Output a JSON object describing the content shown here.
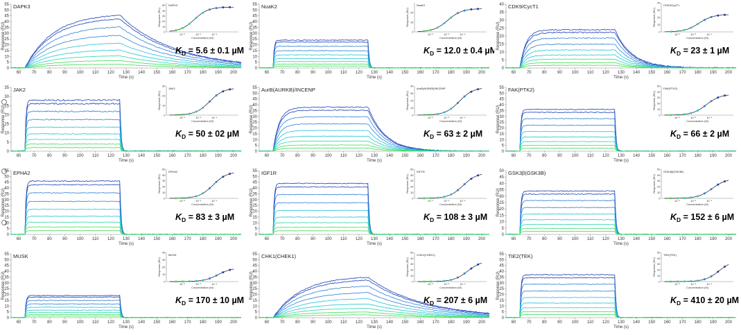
{
  "figure": {
    "panel_axis_labels": {
      "xlabel": "Time (s)",
      "ylabel": "Response (RU)",
      "inset_xlabel": "Concentration (M)",
      "inset_ylabel": "Response (RU)"
    },
    "kd_prefix": "K",
    "kd_sub": "D",
    "colors": {
      "dark_blue": "#1a3fb5",
      "mid_blue": "#2f7fd6",
      "cyan": "#22c3d6",
      "teal": "#2ad6a8",
      "green": "#3bdc55",
      "inset_line": "#111111"
    }
  },
  "chart_data": [
    {
      "type": "line",
      "title": "DAPK3",
      "kd_text": " = 5.6 ± 0.1 µM",
      "kinetics": "slow",
      "plateau": 47,
      "ylim": [
        0,
        55
      ],
      "yticks": [
        0,
        5,
        10,
        15,
        20,
        25,
        30,
        35,
        40,
        45,
        50,
        55
      ],
      "xlim": [
        55,
        205
      ],
      "xticks": [
        60,
        70,
        80,
        90,
        100,
        110,
        120,
        130,
        140,
        150,
        160,
        170,
        180,
        190,
        200
      ],
      "inset": {
        "title": "DAPK3",
        "ylim": [
          0,
          55
        ],
        "yticks": [
          0,
          10,
          20,
          30,
          40,
          50
        ],
        "xticklabels": [
          "10⁻⁶",
          "10⁻⁵",
          "10⁻⁴"
        ],
        "kd_log": -5.25
      }
    },
    {
      "type": "line",
      "title": "NuaK2",
      "kd_text": " = 12.0 ± 0.4 µM",
      "kinetics": "fast",
      "plateau": 24,
      "ylim": [
        0,
        55
      ],
      "yticks": [
        0,
        5,
        10,
        15,
        20,
        25,
        30,
        35,
        40,
        45,
        50,
        55
      ],
      "xlim": [
        55,
        205
      ],
      "xticks": [
        60,
        70,
        80,
        90,
        100,
        110,
        120,
        130,
        140,
        150,
        160,
        170,
        180,
        190,
        200
      ],
      "inset": {
        "title": "NuaK2",
        "ylim": [
          0,
          30
        ],
        "yticks": [
          0,
          10,
          20
        ],
        "xticklabels": [
          "10⁻⁶",
          "10⁻⁵",
          "10⁻⁴"
        ],
        "kd_log": -4.92
      }
    },
    {
      "type": "line",
      "title": "CDK9/CycT1",
      "kd_text": " = 23 ± 1 µM",
      "kinetics": "medium",
      "plateau": 24,
      "ylim": [
        0,
        40
      ],
      "yticks": [
        0,
        5,
        10,
        15,
        20,
        25,
        30,
        35,
        40
      ],
      "xlim": [
        55,
        205
      ],
      "xticks": [
        60,
        70,
        80,
        90,
        100,
        110,
        120,
        130,
        140,
        150,
        160,
        170,
        180,
        190,
        200
      ],
      "inset": {
        "title": "CDK9/CycT1",
        "ylim": [
          0,
          40
        ],
        "yticks": [
          0,
          10,
          20,
          30,
          40
        ],
        "xticklabels": [
          "10⁻⁶",
          "10⁻⁵",
          "10⁻⁴"
        ],
        "kd_log": -4.64
      }
    },
    {
      "type": "line",
      "title": "JAK2",
      "kd_text": " = 50 ± 02 µM",
      "kinetics": "fast",
      "plateau": 28,
      "ylim": [
        0,
        35
      ],
      "yticks": [
        0,
        5,
        10,
        15,
        20,
        25,
        30,
        35
      ],
      "xlim": [
        55,
        205
      ],
      "xticks": [
        60,
        70,
        80,
        90,
        100,
        110,
        120,
        130,
        140,
        150,
        160,
        170,
        180,
        190,
        200
      ],
      "inset": {
        "title": "JAK2",
        "ylim": [
          0,
          30
        ],
        "yticks": [
          0,
          10,
          20,
          30
        ],
        "xticklabels": [
          "10⁻⁶",
          "10⁻⁵",
          "10⁻⁴"
        ],
        "kd_log": -4.3
      }
    },
    {
      "type": "line",
      "title": "AurB(AURKB)/INCENP",
      "kd_text": " = 63 ± 2 µM",
      "kinetics": "medium",
      "plateau": 38,
      "ylim": [
        0,
        55
      ],
      "yticks": [
        0,
        5,
        10,
        15,
        20,
        25,
        30,
        35,
        40,
        45,
        50,
        55
      ],
      "xlim": [
        55,
        205
      ],
      "xticks": [
        60,
        70,
        80,
        90,
        100,
        110,
        120,
        130,
        140,
        150,
        160,
        170,
        180,
        190,
        200
      ],
      "inset": {
        "title": "AurB(AURKB)/INCENP",
        "ylim": [
          0,
          40
        ],
        "yticks": [
          0,
          10,
          20,
          30,
          40
        ],
        "xticklabels": [
          "10⁻⁶",
          "10⁻⁵",
          "10⁻⁴"
        ],
        "kd_log": -4.2
      }
    },
    {
      "type": "line",
      "title": "FAK(PTK2)",
      "kd_text": " = 66 ± 2 µM",
      "kinetics": "fast",
      "plateau": 36,
      "ylim": [
        0,
        55
      ],
      "yticks": [
        0,
        5,
        10,
        15,
        20,
        25,
        30,
        35,
        40,
        45,
        50,
        55
      ],
      "xlim": [
        55,
        205
      ],
      "xticks": [
        60,
        70,
        80,
        90,
        100,
        110,
        120,
        130,
        140,
        150,
        160,
        170,
        180,
        190,
        200
      ],
      "inset": {
        "title": "FAK(PTK2)",
        "ylim": [
          0,
          50
        ],
        "yticks": [
          0,
          10,
          20,
          30,
          40,
          50
        ],
        "xticklabels": [
          "10⁻⁶",
          "10⁻⁵",
          "10⁻⁴"
        ],
        "kd_log": -4.18
      }
    },
    {
      "type": "line",
      "title": "EPHA2",
      "kd_text": " = 83 ± 3 µM",
      "kinetics": "fast",
      "plateau": 46,
      "ylim": [
        0,
        55
      ],
      "yticks": [
        0,
        5,
        10,
        15,
        20,
        25,
        30,
        35,
        40,
        45,
        50,
        55
      ],
      "xlim": [
        55,
        205
      ],
      "xticks": [
        60,
        70,
        80,
        90,
        100,
        110,
        120,
        130,
        140,
        150,
        160,
        170,
        180,
        190,
        200
      ],
      "inset": {
        "title": "EPHA2",
        "ylim": [
          0,
          50
        ],
        "yticks": [
          0,
          10,
          20,
          30,
          40,
          50
        ],
        "xticklabels": [
          "10⁻⁶",
          "10⁻⁵",
          "10⁻⁴"
        ],
        "kd_log": -4.08
      }
    },
    {
      "type": "line",
      "title": "IGF1R",
      "kd_text": " = 108 ± 3 µM",
      "kinetics": "fast",
      "plateau": 44,
      "ylim": [
        0,
        55
      ],
      "yticks": [
        0,
        5,
        10,
        15,
        20,
        25,
        30,
        35,
        40,
        45,
        50,
        55
      ],
      "xlim": [
        55,
        205
      ],
      "xticks": [
        60,
        70,
        80,
        90,
        100,
        110,
        120,
        130,
        140,
        150,
        160,
        170,
        180,
        190,
        200
      ],
      "inset": {
        "title": "IGF1R",
        "ylim": [
          0,
          50
        ],
        "yticks": [
          0,
          10,
          20,
          30,
          40,
          50
        ],
        "xticklabels": [
          "10⁻⁶",
          "10⁻⁵",
          "10⁻⁴"
        ],
        "kd_log": -3.97
      }
    },
    {
      "type": "line",
      "title": "GSK3β(GSK3B)",
      "kd_text": " = 152 ± 6 µM",
      "kinetics": "fast",
      "plateau": 34,
      "ylim": [
        0,
        50
      ],
      "yticks": [
        0,
        5,
        10,
        15,
        20,
        25,
        30,
        35,
        40,
        45,
        50
      ],
      "xlim": [
        55,
        205
      ],
      "xticks": [
        60,
        70,
        80,
        90,
        100,
        110,
        120,
        130,
        140,
        150,
        160,
        170,
        180,
        190,
        200
      ],
      "inset": {
        "title": "GSK3β(GSK3B)",
        "ylim": [
          0,
          50
        ],
        "yticks": [
          0,
          10,
          20,
          30,
          40,
          50
        ],
        "xticklabels": [
          "10⁻⁶",
          "10⁻⁵",
          "10⁻⁴"
        ],
        "kd_log": -3.82
      }
    },
    {
      "type": "line",
      "title": "MUSK",
      "kd_text": " = 170 ± 10 µM",
      "kinetics": "fast",
      "plateau": 19,
      "ylim": [
        0,
        55
      ],
      "yticks": [
        0,
        5,
        10,
        15,
        20,
        25,
        30,
        35,
        40,
        45,
        50,
        55
      ],
      "xlim": [
        55,
        205
      ],
      "xticks": [
        60,
        70,
        80,
        90,
        100,
        110,
        120,
        130,
        140,
        150,
        160,
        170,
        180,
        190,
        200
      ],
      "inset": {
        "title": "MUSK",
        "ylim": [
          0,
          40
        ],
        "yticks": [
          0,
          10,
          20,
          30,
          40
        ],
        "xticklabels": [
          "10⁻⁶",
          "10⁻⁵",
          "10⁻⁴"
        ],
        "kd_log": -3.77
      }
    },
    {
      "type": "line",
      "title": "CHK1(CHEK1)",
      "kd_text": " = 207 ± 6 µM",
      "kinetics": "slow",
      "plateau": 36,
      "ylim": [
        0,
        55
      ],
      "yticks": [
        0,
        5,
        10,
        15,
        20,
        25,
        30,
        35,
        40,
        45,
        50,
        55
      ],
      "xlim": [
        55,
        205
      ],
      "xticks": [
        60,
        70,
        80,
        90,
        100,
        110,
        120,
        130,
        140,
        150,
        160,
        170,
        180,
        190,
        200
      ],
      "inset": {
        "title": "CHK1(CHEK1)",
        "ylim": [
          0,
          50
        ],
        "yticks": [
          0,
          10,
          20,
          30,
          40,
          50
        ],
        "xticklabels": [
          "10⁻⁶",
          "10⁻⁵",
          "10⁻⁴"
        ],
        "kd_log": -3.68
      }
    },
    {
      "type": "line",
      "title": "TIE2(TEK)",
      "kd_text": " = 410 ± 20 µM",
      "kinetics": "fast",
      "plateau": 37,
      "ylim": [
        0,
        55
      ],
      "yticks": [
        0,
        5,
        10,
        15,
        20,
        25,
        30,
        35,
        40,
        45,
        50,
        55
      ],
      "xlim": [
        55,
        205
      ],
      "xticks": [
        60,
        70,
        80,
        90,
        100,
        110,
        120,
        130,
        140,
        150,
        160,
        170,
        180,
        190,
        200
      ],
      "inset": {
        "title": "TIE2(TEK)",
        "ylim": [
          0,
          50
        ],
        "yticks": [
          0,
          10,
          20,
          30,
          40,
          50
        ],
        "xticklabels": [
          "10⁻⁶",
          "10⁻⁵",
          "10⁻⁴"
        ],
        "kd_log": -3.39
      }
    }
  ]
}
